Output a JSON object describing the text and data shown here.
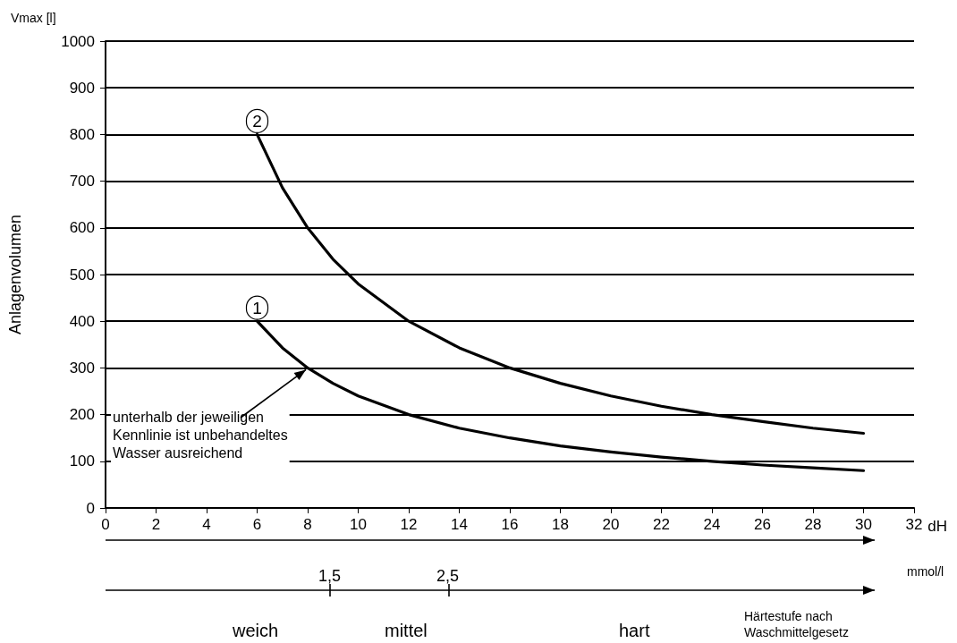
{
  "chart_data": {
    "type": "line",
    "xlabel": "dH",
    "ylabel": "Anlagenvolumen",
    "xlim": [
      0,
      32
    ],
    "xticks": [
      0,
      2,
      4,
      6,
      8,
      10,
      12,
      14,
      16,
      18,
      20,
      22,
      24,
      26,
      28,
      30,
      32
    ],
    "ylim": [
      0,
      1000
    ],
    "yticks": [
      0,
      100,
      200,
      300,
      400,
      500,
      600,
      700,
      800,
      900,
      1000
    ],
    "grid": "y",
    "legend": false,
    "marker": "none",
    "line_style": "solid",
    "series": [
      {
        "name": "1",
        "color": "#000000",
        "x": [
          6,
          7,
          8,
          9,
          10,
          12,
          14,
          16,
          18,
          20,
          22,
          24,
          26,
          28,
          30
        ],
        "values": [
          400,
          343,
          300,
          267,
          240,
          200,
          171,
          150,
          133,
          120,
          109,
          100,
          92,
          86,
          80
        ]
      },
      {
        "name": "2",
        "color": "#000000",
        "x": [
          6,
          7,
          8,
          9,
          10,
          12,
          14,
          16,
          18,
          20,
          22,
          24,
          26,
          28,
          30
        ],
        "values": [
          800,
          686,
          600,
          533,
          480,
          400,
          343,
          300,
          267,
          240,
          218,
          200,
          185,
          171,
          160
        ]
      }
    ],
    "annotations": [
      "Vmax [l]",
      "mmol/l",
      "1,5",
      "2,5",
      "weich",
      "mittel",
      "hart",
      "Härtestufe nach\nWaschmittelgesetz",
      {
        "text": "unterhalb der jeweiligen\nKennlinie ist unbehandeltes\nWasser ausreichend",
        "x": 8,
        "y": 300
      }
    ]
  }
}
